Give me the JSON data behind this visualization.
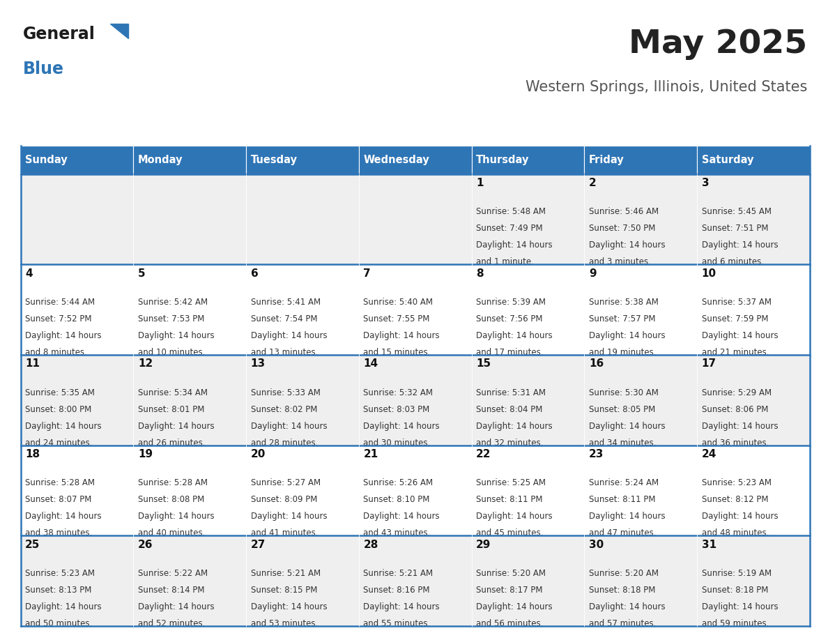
{
  "title": "May 2025",
  "subtitle": "Western Springs, Illinois, United States",
  "days_of_week": [
    "Sunday",
    "Monday",
    "Tuesday",
    "Wednesday",
    "Thursday",
    "Friday",
    "Saturday"
  ],
  "header_bg": "#2E75B6",
  "header_text": "#FFFFFF",
  "row_bg_odd": "#EFEFEF",
  "row_bg_even": "#FFFFFF",
  "cell_text_color": "#333333",
  "day_num_color": "#111111",
  "border_color": "#2E75B6",
  "title_color": "#222222",
  "subtitle_color": "#555555",
  "logo_general_color": "#1a1a1a",
  "logo_blue_color": "#2E75B6",
  "weeks": [
    [
      null,
      null,
      null,
      null,
      {
        "day": 1,
        "sunrise": "5:48 AM",
        "sunset": "7:49 PM",
        "daylight": "14 hours and 1 minute."
      },
      {
        "day": 2,
        "sunrise": "5:46 AM",
        "sunset": "7:50 PM",
        "daylight": "14 hours and 3 minutes."
      },
      {
        "day": 3,
        "sunrise": "5:45 AM",
        "sunset": "7:51 PM",
        "daylight": "14 hours and 6 minutes."
      }
    ],
    [
      {
        "day": 4,
        "sunrise": "5:44 AM",
        "sunset": "7:52 PM",
        "daylight": "14 hours and 8 minutes."
      },
      {
        "day": 5,
        "sunrise": "5:42 AM",
        "sunset": "7:53 PM",
        "daylight": "14 hours and 10 minutes."
      },
      {
        "day": 6,
        "sunrise": "5:41 AM",
        "sunset": "7:54 PM",
        "daylight": "14 hours and 13 minutes."
      },
      {
        "day": 7,
        "sunrise": "5:40 AM",
        "sunset": "7:55 PM",
        "daylight": "14 hours and 15 minutes."
      },
      {
        "day": 8,
        "sunrise": "5:39 AM",
        "sunset": "7:56 PM",
        "daylight": "14 hours and 17 minutes."
      },
      {
        "day": 9,
        "sunrise": "5:38 AM",
        "sunset": "7:57 PM",
        "daylight": "14 hours and 19 minutes."
      },
      {
        "day": 10,
        "sunrise": "5:37 AM",
        "sunset": "7:59 PM",
        "daylight": "14 hours and 21 minutes."
      }
    ],
    [
      {
        "day": 11,
        "sunrise": "5:35 AM",
        "sunset": "8:00 PM",
        "daylight": "14 hours and 24 minutes."
      },
      {
        "day": 12,
        "sunrise": "5:34 AM",
        "sunset": "8:01 PM",
        "daylight": "14 hours and 26 minutes."
      },
      {
        "day": 13,
        "sunrise": "5:33 AM",
        "sunset": "8:02 PM",
        "daylight": "14 hours and 28 minutes."
      },
      {
        "day": 14,
        "sunrise": "5:32 AM",
        "sunset": "8:03 PM",
        "daylight": "14 hours and 30 minutes."
      },
      {
        "day": 15,
        "sunrise": "5:31 AM",
        "sunset": "8:04 PM",
        "daylight": "14 hours and 32 minutes."
      },
      {
        "day": 16,
        "sunrise": "5:30 AM",
        "sunset": "8:05 PM",
        "daylight": "14 hours and 34 minutes."
      },
      {
        "day": 17,
        "sunrise": "5:29 AM",
        "sunset": "8:06 PM",
        "daylight": "14 hours and 36 minutes."
      }
    ],
    [
      {
        "day": 18,
        "sunrise": "5:28 AM",
        "sunset": "8:07 PM",
        "daylight": "14 hours and 38 minutes."
      },
      {
        "day": 19,
        "sunrise": "5:28 AM",
        "sunset": "8:08 PM",
        "daylight": "14 hours and 40 minutes."
      },
      {
        "day": 20,
        "sunrise": "5:27 AM",
        "sunset": "8:09 PM",
        "daylight": "14 hours and 41 minutes."
      },
      {
        "day": 21,
        "sunrise": "5:26 AM",
        "sunset": "8:10 PM",
        "daylight": "14 hours and 43 minutes."
      },
      {
        "day": 22,
        "sunrise": "5:25 AM",
        "sunset": "8:11 PM",
        "daylight": "14 hours and 45 minutes."
      },
      {
        "day": 23,
        "sunrise": "5:24 AM",
        "sunset": "8:11 PM",
        "daylight": "14 hours and 47 minutes."
      },
      {
        "day": 24,
        "sunrise": "5:23 AM",
        "sunset": "8:12 PM",
        "daylight": "14 hours and 48 minutes."
      }
    ],
    [
      {
        "day": 25,
        "sunrise": "5:23 AM",
        "sunset": "8:13 PM",
        "daylight": "14 hours and 50 minutes."
      },
      {
        "day": 26,
        "sunrise": "5:22 AM",
        "sunset": "8:14 PM",
        "daylight": "14 hours and 52 minutes."
      },
      {
        "day": 27,
        "sunrise": "5:21 AM",
        "sunset": "8:15 PM",
        "daylight": "14 hours and 53 minutes."
      },
      {
        "day": 28,
        "sunrise": "5:21 AM",
        "sunset": "8:16 PM",
        "daylight": "14 hours and 55 minutes."
      },
      {
        "day": 29,
        "sunrise": "5:20 AM",
        "sunset": "8:17 PM",
        "daylight": "14 hours and 56 minutes."
      },
      {
        "day": 30,
        "sunrise": "5:20 AM",
        "sunset": "8:18 PM",
        "daylight": "14 hours and 57 minutes."
      },
      {
        "day": 31,
        "sunrise": "5:19 AM",
        "sunset": "8:18 PM",
        "daylight": "14 hours and 59 minutes."
      }
    ]
  ]
}
